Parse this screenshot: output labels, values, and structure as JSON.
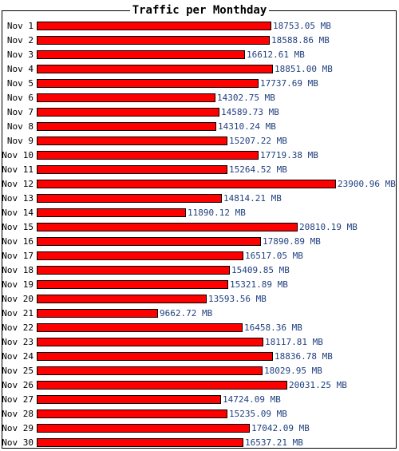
{
  "chart_data": {
    "type": "bar",
    "orientation": "horizontal",
    "title": "Traffic per Monthday",
    "unit": "MB",
    "categories": [
      "Nov 1",
      "Nov 2",
      "Nov 3",
      "Nov 4",
      "Nov 5",
      "Nov 6",
      "Nov 7",
      "Nov 8",
      "Nov 9",
      "Nov 10",
      "Nov 11",
      "Nov 12",
      "Nov 13",
      "Nov 14",
      "Nov 15",
      "Nov 16",
      "Nov 17",
      "Nov 18",
      "Nov 19",
      "Nov 20",
      "Nov 21",
      "Nov 22",
      "Nov 23",
      "Nov 24",
      "Nov 25",
      "Nov 26",
      "Nov 27",
      "Nov 28",
      "Nov 29",
      "Nov 30"
    ],
    "values": [
      18753.05,
      18588.86,
      16612.61,
      18851.0,
      17737.69,
      14302.75,
      14589.73,
      14310.24,
      15207.22,
      17719.38,
      15264.52,
      23900.96,
      14814.21,
      11890.12,
      20810.19,
      17890.89,
      16517.05,
      15409.85,
      15321.89,
      13593.56,
      9662.72,
      16458.36,
      18117.81,
      18836.78,
      18029.95,
      20031.25,
      14724.09,
      15235.09,
      17042.09,
      16537.21
    ],
    "value_labels": [
      "18753.05 MB",
      "18588.86 MB",
      "16612.61 MB",
      "18851.00 MB",
      "17737.69 MB",
      "14302.75 MB",
      "14589.73 MB",
      "14310.24 MB",
      "15207.22 MB",
      "17719.38 MB",
      "15264.52 MB",
      "23900.96 MB",
      "14814.21 MB",
      "11890.12 MB",
      "20810.19 MB",
      "17890.89 MB",
      "16517.05 MB",
      "15409.85 MB",
      "15321.89 MB",
      "13593.56 MB",
      "9662.72 MB",
      "16458.36 MB",
      "18117.81 MB",
      "18836.78 MB",
      "18029.95 MB",
      "20031.25 MB",
      "14724.09 MB",
      "15235.09 MB",
      "17042.09 MB",
      "16537.21 MB"
    ],
    "bar_color": "#ff0000",
    "label_color": "#1f3f7f"
  }
}
